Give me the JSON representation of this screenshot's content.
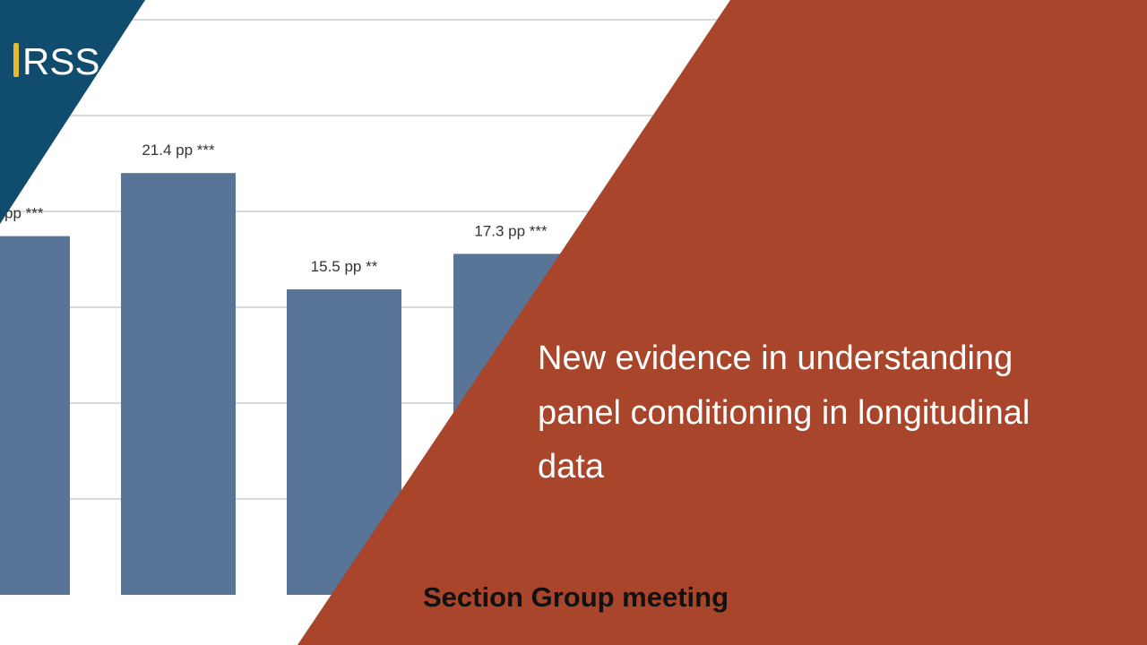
{
  "logo": "RSS",
  "title_lines": [
    "New evidence in understanding",
    "panel conditioning in longitudinal",
    "data"
  ],
  "subtitle": "Section Group meeting",
  "chart_data": {
    "type": "bar",
    "values": [
      18.2,
      21.4,
      15.5,
      17.3
    ],
    "value_labels": [
      "pp ***",
      "21.4 pp ***",
      "15.5 pp **",
      "17.3 pp ***"
    ],
    "color": "#587496",
    "ylim": [
      0,
      30
    ]
  }
}
